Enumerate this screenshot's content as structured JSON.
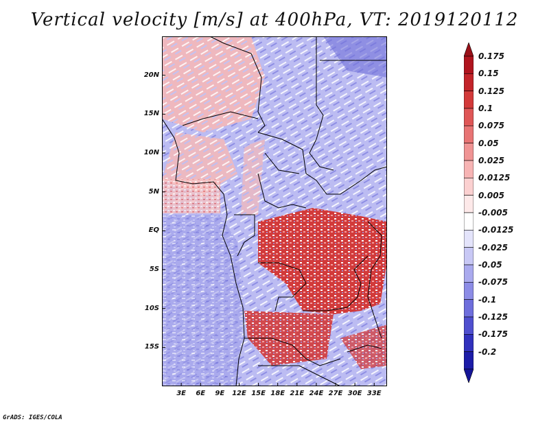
{
  "title": "Vertical velocity [m/s] at 400hPa, VT: 2019120112",
  "credit": "GrADS: IGES/COLA",
  "map": {
    "lon_range": [
      0,
      35
    ],
    "lat_range": [
      -20,
      25
    ],
    "lat_ticks": [
      {
        "value": 20,
        "label": "20N"
      },
      {
        "value": 15,
        "label": "15N"
      },
      {
        "value": 10,
        "label": "10N"
      },
      {
        "value": 5,
        "label": "5N"
      },
      {
        "value": 0,
        "label": "EQ"
      },
      {
        "value": -5,
        "label": "5S"
      },
      {
        "value": -10,
        "label": "10S"
      },
      {
        "value": -15,
        "label": "15S"
      }
    ],
    "lon_ticks": [
      {
        "value": 3,
        "label": "3E"
      },
      {
        "value": 6,
        "label": "6E"
      },
      {
        "value": 9,
        "label": "9E"
      },
      {
        "value": 12,
        "label": "12E"
      },
      {
        "value": 15,
        "label": "15E"
      },
      {
        "value": 18,
        "label": "18E"
      },
      {
        "value": 21,
        "label": "21E"
      },
      {
        "value": 24,
        "label": "24E"
      },
      {
        "value": 27,
        "label": "27E"
      },
      {
        "value": 30,
        "label": "30E"
      },
      {
        "value": 33,
        "label": "33E"
      }
    ]
  },
  "colorbar": {
    "levels": [
      {
        "label": "0.175",
        "color": "#b0141e"
      },
      {
        "label": "0.15",
        "color": "#c3242a"
      },
      {
        "label": "0.125",
        "color": "#d33a3a"
      },
      {
        "label": "0.1",
        "color": "#df5656"
      },
      {
        "label": "0.075",
        "color": "#e87474"
      },
      {
        "label": "0.05",
        "color": "#f09494"
      },
      {
        "label": "0.025",
        "color": "#f7b4b4"
      },
      {
        "label": "0.0125",
        "color": "#fbd0d0"
      },
      {
        "label": "0.005",
        "color": "#fde9e9"
      },
      {
        "label": "-0.005",
        "color": "#ffffff"
      },
      {
        "label": "-0.0125",
        "color": "#e4e4fb"
      },
      {
        "label": "-0.025",
        "color": "#c8c8f5"
      },
      {
        "label": "-0.05",
        "color": "#aaaaee"
      },
      {
        "label": "-0.075",
        "color": "#8c8ce6"
      },
      {
        "label": "-0.1",
        "color": "#6e6edc"
      },
      {
        "label": "-0.125",
        "color": "#4f4fcf"
      },
      {
        "label": "-0.175",
        "color": "#3131bd"
      },
      {
        "label": "-0.2",
        "color": "#1c1ca8"
      }
    ],
    "top_cap_color": "#9a1018",
    "bottom_cap_color": "#151597"
  }
}
